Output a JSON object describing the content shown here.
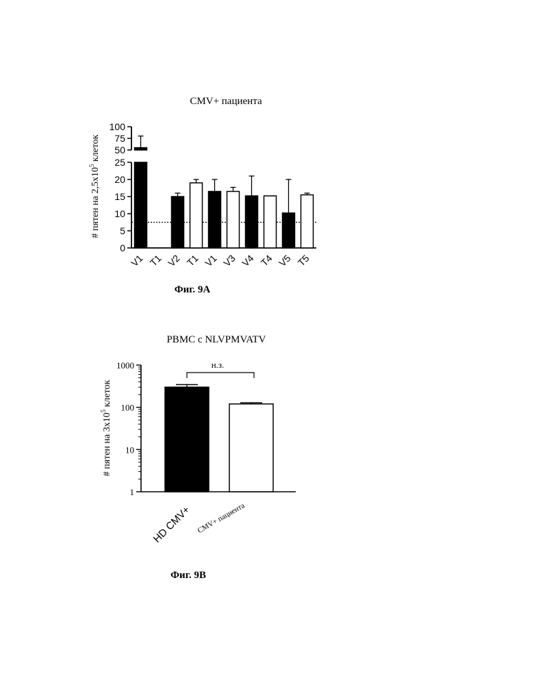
{
  "chart_data": [
    {
      "type": "bar",
      "title": "CMV+ пациента",
      "ylabel_main": "# пятен на 2,5х10",
      "ylabel_sup": "5",
      "ylabel_tail": " клеток",
      "xlabel": "",
      "axis_break": true,
      "ylim_lower": [
        0,
        25
      ],
      "ylim_upper": [
        50,
        100
      ],
      "yticks_lower": [
        "0",
        "5",
        "10",
        "15",
        "20",
        "25"
      ],
      "yticks_upper": [
        "50",
        "75",
        "100"
      ],
      "threshold": 7.5,
      "threshold_style": "dotted",
      "categories": [
        "V1",
        "T1",
        "V2",
        "T1",
        "V1",
        "V3",
        "V4",
        "T4",
        "V5",
        "T5"
      ],
      "values": [
        55,
        0,
        15,
        19,
        16.5,
        16.5,
        15.2,
        15.2,
        10.2,
        15.5
      ],
      "errors": [
        25,
        0,
        1,
        1,
        3.5,
        1.2,
        5.8,
        0,
        9.8,
        0.5
      ],
      "fills": [
        "#000000",
        "#ffffff",
        "#000000",
        "#ffffff",
        "#000000",
        "#ffffff",
        "#000000",
        "#ffffff",
        "#000000",
        "#ffffff"
      ],
      "caption": "Фиг. 9A"
    },
    {
      "type": "bar",
      "title": "PBMC с NLVPMVATV",
      "ylabel_main": "# пятен на 3х10",
      "ylabel_sup": "5",
      "ylabel_tail": " клеток",
      "xlabel": "",
      "yscale": "log",
      "ylim": [
        1,
        1000
      ],
      "yticks": [
        "1",
        "10",
        "100",
        "1000"
      ],
      "categories": [
        "HD CMV+",
        "CMV+ пациента"
      ],
      "values": [
        300,
        120
      ],
      "errors": [
        45,
        8
      ],
      "fills": [
        "#000000",
        "#ffffff"
      ],
      "significance": "н.з.",
      "caption": "Фиг. 9B"
    }
  ]
}
